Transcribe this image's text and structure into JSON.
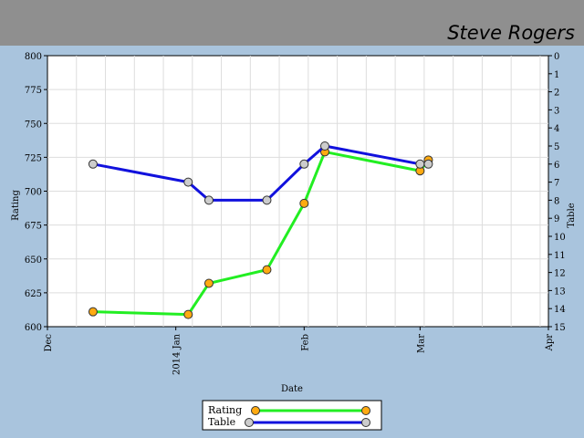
{
  "header": {
    "player_name": "Steve Rogers"
  },
  "colors": {
    "header_bg": "#8f8f8f",
    "page_bg": "#a9c4dd",
    "plot_bg": "#ffffff",
    "grid": "#dddddd",
    "rating_line": "#22ee22",
    "rating_marker": "#ffaa11",
    "table_line": "#1111dd",
    "table_marker": "#cccccc"
  },
  "chart_data": {
    "type": "line",
    "xlabel": "Date",
    "ylabel": "Rating",
    "y2label": "Table",
    "x_ticks": [
      "Dec",
      "2014 Jan",
      "Feb",
      "Mar",
      "Apr"
    ],
    "ylim": [
      600,
      800
    ],
    "y_ticks": [
      "600",
      "625",
      "650",
      "675",
      "700",
      "725",
      "750",
      "775",
      "800"
    ],
    "y2lim": [
      15,
      0
    ],
    "y2_ticks": [
      "0",
      "1",
      "2",
      "3",
      "4",
      "5",
      "6",
      "7",
      "8",
      "9",
      "10",
      "11",
      "12",
      "13",
      "14",
      "15"
    ],
    "grid": true,
    "legend_position": "bottom-center",
    "series": [
      {
        "name": "Rating",
        "axis": "left",
        "points": [
          {
            "date": "2013-12-12",
            "value": 611
          },
          {
            "date": "2014-01-04",
            "value": 609
          },
          {
            "date": "2014-01-09",
            "value": 632
          },
          {
            "date": "2014-01-23",
            "value": 642
          },
          {
            "date": "2014-02-01",
            "value": 691
          },
          {
            "date": "2014-02-06",
            "value": 729
          },
          {
            "date": "2014-03-01",
            "value": 715
          },
          {
            "date": "2014-03-03",
            "value": 723
          }
        ]
      },
      {
        "name": "Table",
        "axis": "right",
        "points": [
          {
            "date": "2013-12-12",
            "value": 6
          },
          {
            "date": "2014-01-04",
            "value": 7
          },
          {
            "date": "2014-01-09",
            "value": 8
          },
          {
            "date": "2014-01-23",
            "value": 8
          },
          {
            "date": "2014-02-01",
            "value": 6
          },
          {
            "date": "2014-02-06",
            "value": 5
          },
          {
            "date": "2014-03-01",
            "value": 6
          },
          {
            "date": "2014-03-03",
            "value": 6
          }
        ]
      }
    ]
  }
}
